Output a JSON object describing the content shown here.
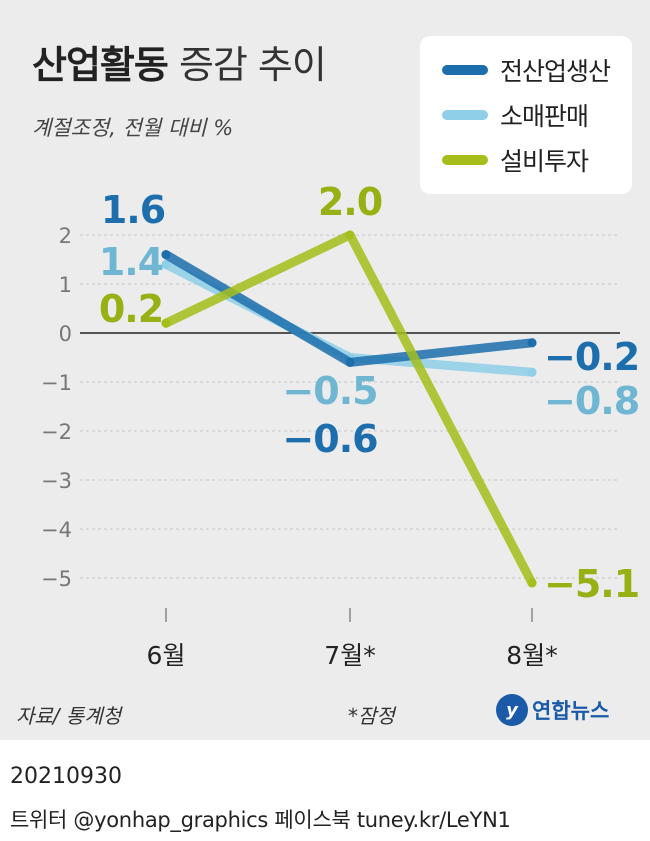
{
  "header": {
    "title_bold": "산업활동",
    "title_light": "증감 추이",
    "subtitle": "계절조정, 전월 대비 %"
  },
  "chart_data": {
    "type": "line",
    "categories": [
      "6월",
      "7월*",
      "8월*"
    ],
    "ylim": [
      -5,
      2
    ],
    "yticks": [
      "2",
      "1",
      "0",
      "−1",
      "−2",
      "−3",
      "−4",
      "−5"
    ],
    "ytick_values": [
      2,
      1,
      0,
      -1,
      -2,
      -3,
      -4,
      -5
    ],
    "grid": true,
    "legend_position": "top-right",
    "series": [
      {
        "name": "전산업생산",
        "color": "#1c6ead",
        "values": [
          1.6,
          -0.6,
          -0.2
        ],
        "labels": [
          "1.6",
          "−0.6",
          "−0.2"
        ]
      },
      {
        "name": "소매판매",
        "color": "#8fcfe8",
        "values": [
          1.4,
          -0.5,
          -0.8
        ],
        "labels": [
          "1.4",
          "−0.5",
          "−0.8"
        ]
      },
      {
        "name": "설비투자",
        "color": "#a5be1a",
        "values": [
          0.2,
          2.0,
          -5.1
        ],
        "labels": [
          "0.2",
          "2.0",
          "−5.1"
        ]
      }
    ],
    "label_colors": [
      "#1c6ead",
      "#6fb6d3",
      "#97b014"
    ]
  },
  "footer": {
    "source": "자료/ 통계청",
    "note": "*잠정",
    "logo_mark": "y",
    "logo_text": "연합뉴스"
  },
  "meta": {
    "date": "20210930",
    "credits": "트위터 @yonhap_graphics  페이스북 tuney.kr/LeYN1"
  }
}
